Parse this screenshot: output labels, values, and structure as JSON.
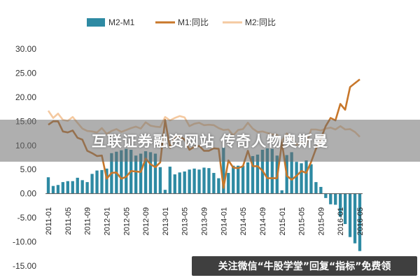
{
  "overlay": {
    "banner_text": "互联证券融资网站 传奇人物奥斯曼",
    "watermark_text": "关注微信“牛股学堂”回复“指标”免费领"
  },
  "chart_data": {
    "type": "bar+line",
    "title": "",
    "xlabel": "",
    "ylabel": "",
    "ylim": [
      -15,
      30
    ],
    "yticks": [
      "30.00",
      "25.00",
      "20.00",
      "15.00",
      "10.00",
      "5.00",
      "0.00",
      "-5.00",
      "-10.00",
      "-15.00"
    ],
    "xtick_labels": [
      "2011-01",
      "2011-05",
      "2011-09",
      "2012-01",
      "2012-05",
      "2012-09",
      "2013-01",
      "2013-05",
      "2013-09",
      "2014-01",
      "2014-05",
      "2014-09",
      "2015-01",
      "2015-05",
      "2015-09",
      "2016-01",
      "2016-05"
    ],
    "legend": [
      "M2-M1",
      "M1:同比",
      "M2:同比"
    ],
    "legend_position": "top",
    "colors": {
      "bars": "#2e8aa3",
      "m1": "#c8772a",
      "m2": "#f4c9a0"
    },
    "months": [
      "2011-01",
      "2011-02",
      "2011-03",
      "2011-04",
      "2011-05",
      "2011-06",
      "2011-07",
      "2011-08",
      "2011-09",
      "2011-10",
      "2011-11",
      "2011-12",
      "2012-01",
      "2012-02",
      "2012-03",
      "2012-04",
      "2012-05",
      "2012-06",
      "2012-07",
      "2012-08",
      "2012-09",
      "2012-10",
      "2012-11",
      "2012-12",
      "2013-01",
      "2013-02",
      "2013-03",
      "2013-04",
      "2013-05",
      "2013-06",
      "2013-07",
      "2013-08",
      "2013-09",
      "2013-10",
      "2013-11",
      "2013-12",
      "2014-01",
      "2014-02",
      "2014-03",
      "2014-04",
      "2014-05",
      "2014-06",
      "2014-07",
      "2014-08",
      "2014-09",
      "2014-10",
      "2014-11",
      "2014-12",
      "2015-01",
      "2015-02",
      "2015-03",
      "2015-04",
      "2015-05",
      "2015-06",
      "2015-07",
      "2015-08",
      "2015-09",
      "2015-10",
      "2015-11",
      "2015-12",
      "2016-01",
      "2016-02",
      "2016-03",
      "2016-04",
      "2016-05"
    ],
    "series": [
      {
        "name": "M2-M1",
        "kind": "bar",
        "values": [
          3.4,
          1.6,
          1.8,
          2.4,
          2.6,
          2.6,
          3.3,
          2.8,
          2.4,
          4.1,
          4.8,
          4.9,
          5.2,
          8.4,
          8.7,
          9.0,
          9.3,
          9.1,
          7.9,
          8.3,
          8.8,
          8.6,
          8.3,
          5.5,
          0.8,
          5.6,
          4.0,
          4.4,
          4.6,
          5.0,
          5.2,
          5.0,
          5.4,
          5.3,
          4.3,
          3.2,
          9.6,
          4.3,
          5.8,
          5.8,
          5.8,
          6.5,
          7.8,
          8.1,
          9.1,
          9.4,
          9.3,
          7.9,
          0.7,
          8.0,
          8.6,
          6.6,
          6.3,
          6.9,
          6.1,
          2.4,
          1.4,
          -0.9,
          -2.2,
          -2.3,
          -4.8,
          -6.3,
          -9.0,
          -10.3,
          -11.9
        ]
      },
      {
        "name": "M1:同比",
        "kind": "line",
        "values": [
          14.3,
          15.0,
          15.0,
          12.9,
          12.7,
          13.1,
          11.6,
          11.2,
          8.9,
          8.4,
          7.8,
          7.9,
          3.1,
          4.3,
          4.4,
          3.1,
          3.5,
          4.7,
          4.6,
          4.5,
          7.3,
          6.1,
          5.5,
          6.5,
          15.3,
          9.5,
          11.9,
          11.9,
          11.2,
          9.1,
          9.7,
          9.9,
          8.9,
          8.9,
          9.4,
          9.3,
          1.2,
          6.9,
          5.4,
          5.3,
          5.7,
          8.9,
          5.7,
          5.7,
          4.8,
          3.2,
          3.2,
          3.2,
          10.6,
          3.7,
          2.9,
          3.7,
          4.7,
          4.3,
          6.6,
          9.3,
          11.4,
          14.0,
          15.7,
          15.2,
          18.6,
          17.4,
          22.1,
          22.9,
          23.7
        ]
      },
      {
        "name": "M2:同比",
        "kind": "line",
        "values": [
          17.2,
          15.7,
          16.6,
          15.3,
          15.1,
          15.9,
          14.7,
          13.5,
          13.0,
          12.9,
          12.7,
          13.6,
          12.4,
          13.0,
          13.4,
          12.8,
          13.2,
          13.6,
          13.9,
          13.5,
          14.8,
          14.1,
          13.9,
          13.8,
          15.9,
          15.2,
          15.7,
          16.1,
          15.8,
          14.0,
          14.5,
          14.7,
          14.2,
          14.3,
          14.2,
          13.6,
          13.2,
          13.3,
          12.1,
          13.2,
          13.4,
          14.7,
          13.5,
          12.8,
          12.9,
          12.6,
          12.3,
          12.2,
          10.8,
          12.5,
          11.6,
          10.1,
          10.8,
          10.2,
          13.3,
          13.3,
          13.1,
          13.5,
          13.7,
          13.3,
          14.0,
          13.3,
          13.4,
          12.8,
          11.8
        ]
      }
    ]
  }
}
